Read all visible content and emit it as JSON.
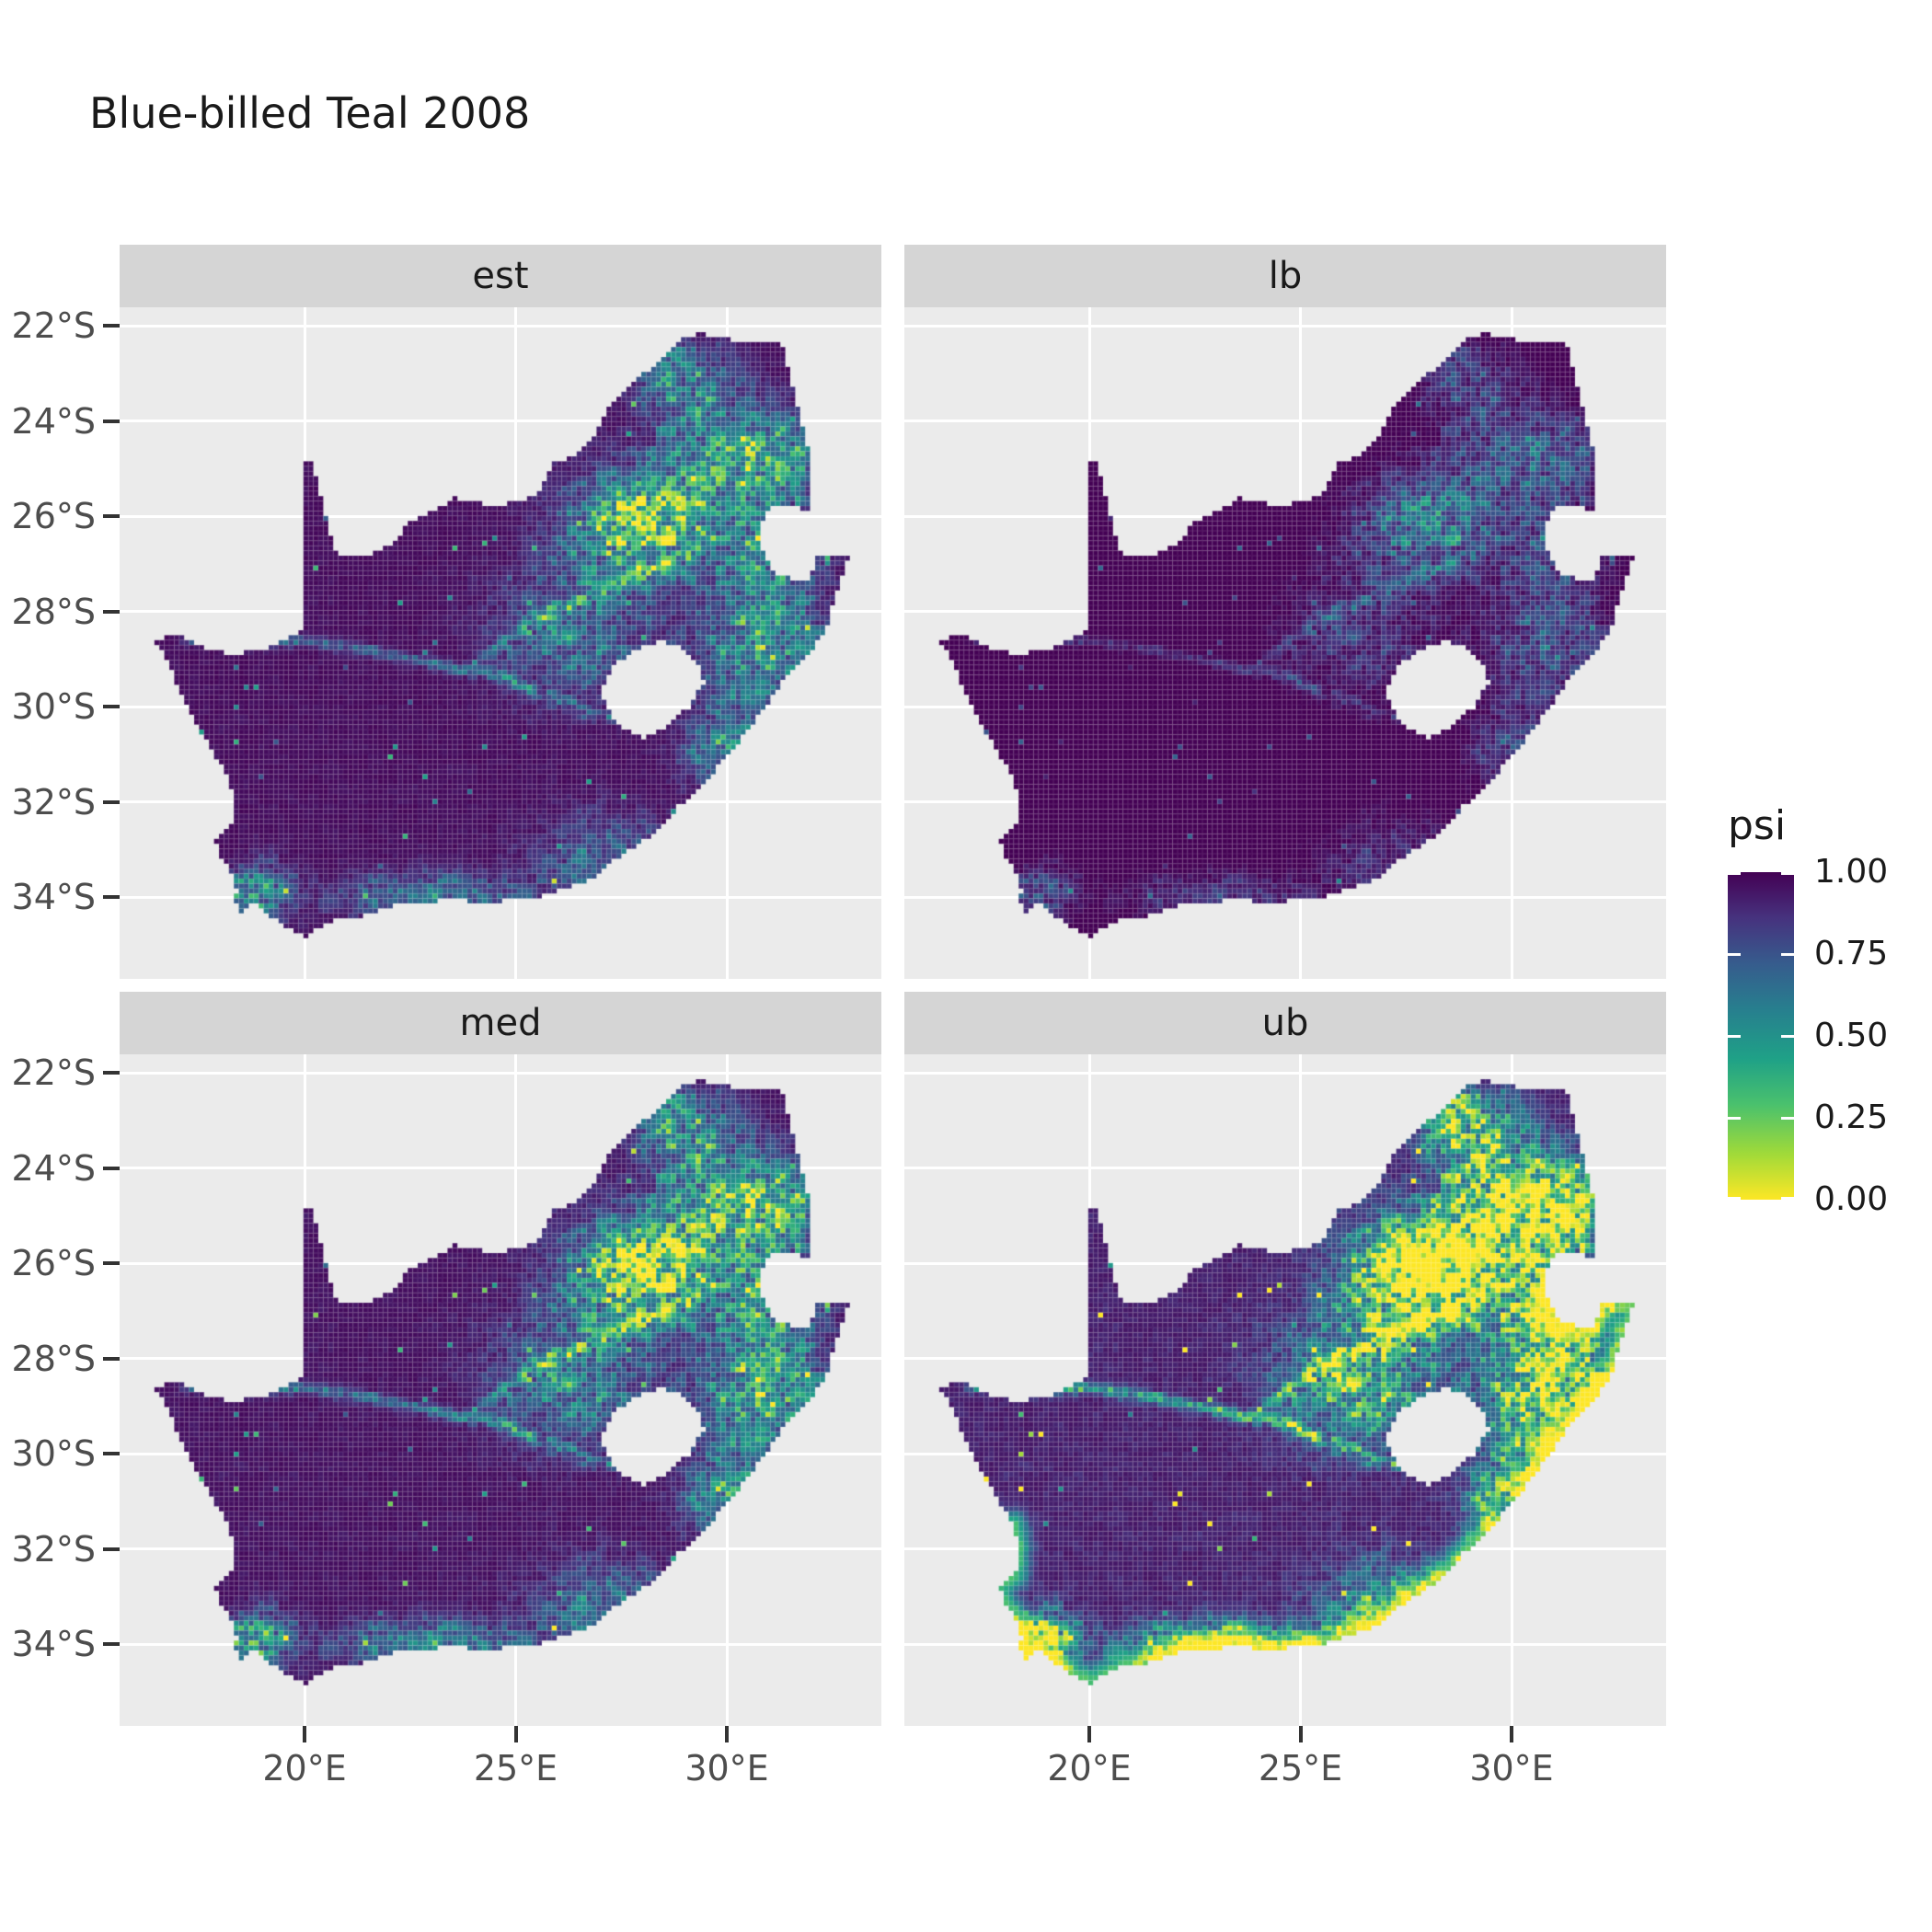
{
  "title": "Blue-billed Teal 2008",
  "facets": [
    {
      "key": "est",
      "label": "est"
    },
    {
      "key": "lb",
      "label": "lb"
    },
    {
      "key": "med",
      "label": "med"
    },
    {
      "key": "ub",
      "label": "ub"
    }
  ],
  "legend": {
    "title": "psi",
    "ticks": [
      "1.00",
      "0.75",
      "0.50",
      "0.25",
      "0.00"
    ],
    "tick_values": [
      1.0,
      0.75,
      0.5,
      0.25,
      0.0
    ]
  },
  "axes": {
    "x": {
      "tick_labels": [
        "20°E",
        "25°E",
        "30°E"
      ],
      "tick_lons": [
        20,
        25,
        30
      ]
    },
    "y": {
      "tick_labels": [
        "22°S",
        "24°S",
        "26°S",
        "28°S",
        "30°S",
        "32°S",
        "34°S"
      ],
      "tick_lats": [
        -22,
        -24,
        -26,
        -28,
        -30,
        -32,
        -34
      ]
    }
  },
  "colors": {
    "panel_bg": "#ebebeb",
    "strip_bg": "#d5d5d5",
    "grid": "#ffffff",
    "axis_text": "#4d4d4d",
    "tick_mark": "#333333",
    "title_text": "#1a1a1a"
  },
  "chart_data": {
    "type": "heatmap",
    "title": "Blue-billed Teal 2008",
    "region": "South Africa",
    "variable": "psi",
    "value_range": [
      0,
      1
    ],
    "facets": [
      "est",
      "lb",
      "med",
      "ub"
    ],
    "extent": {
      "lon": [
        15.62,
        33.66
      ],
      "lat": [
        -35.71,
        -21.61
      ]
    },
    "colormap": {
      "name": "viridis",
      "stops": [
        [
          0.0,
          "#440154"
        ],
        [
          0.14,
          "#46327e"
        ],
        [
          0.28,
          "#365c8d"
        ],
        [
          0.42,
          "#277f8e"
        ],
        [
          0.57,
          "#1fa187"
        ],
        [
          0.71,
          "#4ac16d"
        ],
        [
          0.86,
          "#a0da39"
        ],
        [
          1.0,
          "#fde725"
        ]
      ]
    },
    "outline": [
      [
        16.45,
        -28.58
      ],
      [
        17.1,
        -28.5
      ],
      [
        17.65,
        -28.75
      ],
      [
        18.25,
        -28.9
      ],
      [
        18.9,
        -28.82
      ],
      [
        19.55,
        -28.6
      ],
      [
        19.98,
        -28.4
      ],
      [
        19.98,
        -24.77
      ],
      [
        20.2,
        -24.9
      ],
      [
        20.38,
        -25.55
      ],
      [
        20.55,
        -26.15
      ],
      [
        20.7,
        -26.65
      ],
      [
        20.9,
        -26.85
      ],
      [
        21.5,
        -26.85
      ],
      [
        21.95,
        -26.65
      ],
      [
        22.55,
        -26.1
      ],
      [
        22.95,
        -25.95
      ],
      [
        23.55,
        -25.6
      ],
      [
        24.25,
        -25.75
      ],
      [
        25.05,
        -25.72
      ],
      [
        25.6,
        -25.45
      ],
      [
        25.9,
        -24.9
      ],
      [
        26.5,
        -24.65
      ],
      [
        26.9,
        -24.3
      ],
      [
        27.2,
        -23.7
      ],
      [
        27.8,
        -23.15
      ],
      [
        28.3,
        -22.85
      ],
      [
        28.9,
        -22.3
      ],
      [
        29.4,
        -22.15
      ],
      [
        30.1,
        -22.3
      ],
      [
        30.8,
        -22.3
      ],
      [
        31.3,
        -22.4
      ],
      [
        31.55,
        -23.2
      ],
      [
        31.75,
        -23.95
      ],
      [
        31.95,
        -24.6
      ],
      [
        32.02,
        -25.3
      ],
      [
        31.97,
        -25.9
      ],
      [
        31.35,
        -25.73
      ],
      [
        30.95,
        -25.85
      ],
      [
        30.78,
        -26.3
      ],
      [
        30.87,
        -26.8
      ],
      [
        31.15,
        -27.2
      ],
      [
        31.6,
        -27.33
      ],
      [
        31.97,
        -27.3
      ],
      [
        32.13,
        -26.85
      ],
      [
        32.55,
        -26.85
      ],
      [
        32.89,
        -26.86
      ],
      [
        32.6,
        -27.6
      ],
      [
        32.35,
        -28.35
      ],
      [
        32.0,
        -28.85
      ],
      [
        31.35,
        -29.45
      ],
      [
        30.9,
        -30.0
      ],
      [
        30.45,
        -30.55
      ],
      [
        30.0,
        -31.05
      ],
      [
        29.5,
        -31.55
      ],
      [
        28.9,
        -32.05
      ],
      [
        28.2,
        -32.7
      ],
      [
        27.5,
        -33.1
      ],
      [
        26.85,
        -33.6
      ],
      [
        26.2,
        -33.78
      ],
      [
        25.68,
        -33.95
      ],
      [
        25.62,
        -34.05
      ],
      [
        24.9,
        -34.05
      ],
      [
        24.2,
        -34.15
      ],
      [
        23.5,
        -33.98
      ],
      [
        23.0,
        -34.1
      ],
      [
        22.3,
        -34.08
      ],
      [
        21.6,
        -34.35
      ],
      [
        20.75,
        -34.48
      ],
      [
        20.0,
        -34.82
      ],
      [
        19.55,
        -34.6
      ],
      [
        19.1,
        -34.38
      ],
      [
        18.8,
        -34.1
      ],
      [
        18.45,
        -34.32
      ],
      [
        18.32,
        -34.0
      ],
      [
        18.42,
        -33.85
      ],
      [
        18.2,
        -33.4
      ],
      [
        18.0,
        -33.1
      ],
      [
        17.85,
        -32.78
      ],
      [
        18.25,
        -32.55
      ],
      [
        18.32,
        -32.0
      ],
      [
        18.22,
        -31.5
      ],
      [
        17.6,
        -30.6
      ],
      [
        17.1,
        -29.8
      ],
      [
        16.8,
        -29.1
      ],
      [
        16.45,
        -28.58
      ]
    ],
    "lesotho_hole": [
      [
        27.0,
        -29.65
      ],
      [
        27.35,
        -29.1
      ],
      [
        27.8,
        -28.85
      ],
      [
        28.4,
        -28.6
      ],
      [
        28.95,
        -28.75
      ],
      [
        29.35,
        -29.1
      ],
      [
        29.45,
        -29.5
      ],
      [
        29.1,
        -30.0
      ],
      [
        28.6,
        -30.4
      ],
      [
        28.05,
        -30.65
      ],
      [
        27.5,
        -30.4
      ],
      [
        27.15,
        -30.05
      ]
    ],
    "rivers": [
      [
        [
          17.2,
          -28.55
        ],
        [
          18.6,
          -28.7
        ],
        [
          20.0,
          -28.6
        ],
        [
          21.3,
          -28.8
        ],
        [
          22.5,
          -29.0
        ],
        [
          23.6,
          -29.2
        ],
        [
          24.6,
          -29.35
        ],
        [
          25.7,
          -29.75
        ],
        [
          26.7,
          -30.1
        ],
        [
          27.3,
          -30.2
        ]
      ],
      [
        [
          29.1,
          -26.75
        ],
        [
          28.1,
          -27.1
        ],
        [
          27.0,
          -27.6
        ],
        [
          26.1,
          -27.9
        ],
        [
          25.1,
          -28.4
        ],
        [
          24.2,
          -29.0
        ]
      ]
    ],
    "hotspots": [
      [
        28.1,
        -26.2,
        1.7,
        1.05,
        0.98
      ],
      [
        29.9,
        -24.6,
        1.4,
        1.0,
        0.55
      ],
      [
        30.9,
        -28.7,
        1.5,
        1.2,
        0.62
      ],
      [
        26.4,
        -28.4,
        1.7,
        1.3,
        0.42
      ],
      [
        28.9,
        -23.1,
        1.1,
        0.75,
        0.5
      ],
      [
        31.3,
        -24.8,
        0.9,
        1.0,
        0.45
      ],
      [
        31.0,
        -26.7,
        1.0,
        0.9,
        0.55
      ],
      [
        30.0,
        -30.8,
        1.0,
        0.8,
        0.45
      ],
      [
        18.9,
        -33.9,
        0.75,
        0.55,
        0.6
      ],
      [
        23.2,
        -34.0,
        2.3,
        0.5,
        0.38
      ],
      [
        27.2,
        -33.2,
        1.6,
        0.9,
        0.35
      ]
    ],
    "facet_params": {
      "est": {
        "gain": 1.0,
        "offset": 0.0,
        "coast": 0.0
      },
      "lb": {
        "gain": 0.55,
        "offset": -0.05,
        "coast": 0.0
      },
      "med": {
        "gain": 1.18,
        "offset": 0.01,
        "coast": 0.0
      },
      "ub": {
        "gain": 1.8,
        "offset": 0.03,
        "coast": 0.62
      }
    }
  }
}
